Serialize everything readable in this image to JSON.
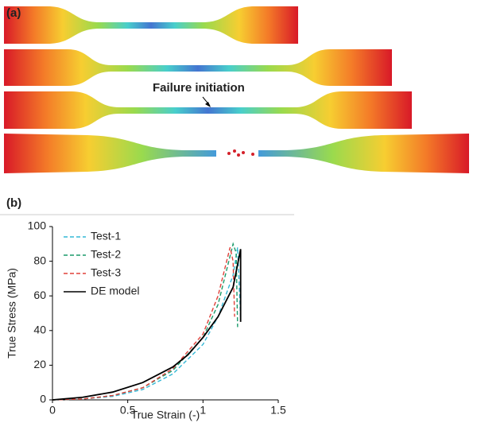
{
  "panels": [
    "(a)",
    "(b)"
  ],
  "annotation": "Failure initiation",
  "chart_data": {
    "type": "line",
    "xlabel": "True Strain (-)",
    "ylabel": "True Stress (MPa)",
    "xlim": [
      0,
      1.5
    ],
    "xticks": [
      0,
      0.5,
      1,
      1.5
    ],
    "ylim": [
      0,
      100
    ],
    "yticks": [
      0,
      20,
      40,
      60,
      80,
      100
    ],
    "legend": "upper left",
    "series": [
      {
        "name": "Test-1",
        "color": "#33b8d6",
        "dash": true,
        "x": [
          0,
          0.2,
          0.4,
          0.6,
          0.8,
          1.0,
          1.1,
          1.2,
          1.23,
          1.25
        ],
        "values": [
          0,
          0.5,
          2,
          6,
          15,
          32,
          48,
          72,
          88,
          47
        ]
      },
      {
        "name": "Test-2",
        "color": "#1a9a6a",
        "dash": true,
        "x": [
          0,
          0.2,
          0.4,
          0.6,
          0.8,
          1.0,
          1.1,
          1.2,
          1.22,
          1.23
        ],
        "values": [
          0,
          0.5,
          2.5,
          7,
          17,
          36,
          55,
          90,
          85,
          42
        ]
      },
      {
        "name": "Test-3",
        "color": "#e0403a",
        "dash": true,
        "x": [
          0,
          0.2,
          0.4,
          0.6,
          0.8,
          1.0,
          1.1,
          1.18,
          1.2,
          1.21
        ],
        "values": [
          0,
          0.5,
          2.5,
          7,
          18,
          38,
          60,
          88,
          80,
          48
        ]
      },
      {
        "name": "DE model",
        "color": "#000000",
        "dash": false,
        "x": [
          0,
          0.2,
          0.4,
          0.6,
          0.8,
          0.9,
          1.0,
          1.1,
          1.2,
          1.25,
          1.25
        ],
        "values": [
          0,
          1.5,
          4.5,
          10,
          19,
          26,
          36,
          48,
          65,
          87,
          45
        ]
      }
    ]
  }
}
